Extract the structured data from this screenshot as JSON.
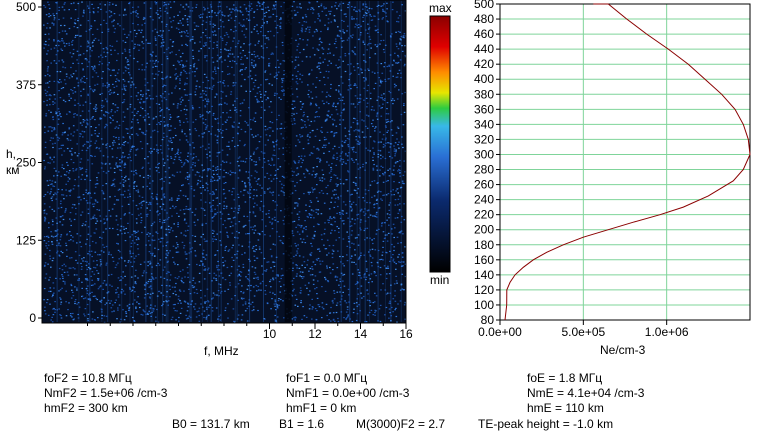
{
  "ionogram": {
    "y_axis_label_line1": "h,",
    "y_axis_label_line2": "км",
    "x_axis_label": "f, MHz",
    "colorbar_max_label": "max",
    "colorbar_min_label": "min",
    "y_ticks": [
      "0",
      "125",
      "250",
      "375",
      "500"
    ],
    "x_ticks": [
      "10",
      "12",
      "14",
      "16"
    ]
  },
  "profile": {
    "x_axis_label": "Ne/cm-3",
    "x_ticks": [
      "0.0e+00",
      "5.0e+05",
      "1.0e+06"
    ],
    "y_ticks": [
      "80",
      "100",
      "120",
      "140",
      "160",
      "180",
      "200",
      "220",
      "240",
      "260",
      "280",
      "300",
      "320",
      "340",
      "360",
      "380",
      "400",
      "420",
      "440",
      "460",
      "480",
      "500"
    ]
  },
  "parameters": {
    "col1": [
      "foF2 = 10.8 МГц",
      "NmF2 = 1.5e+06 /cm-3",
      "hmF2 = 300 km"
    ],
    "col2": [
      "foF1 = 0.0 МГц",
      "NmF1 = 0.0e+00 /cm-3",
      "hmF1 = 0 km"
    ],
    "col3": [
      "foE = 1.8 МГц",
      "NmE = 4.1e+04 /cm-3",
      "hmE = 110 km"
    ],
    "bottom": [
      "B0 = 131.7 km",
      "B1 = 1.6",
      "M(3000)F2 = 2.7",
      "TE-peak height = -1.0 km"
    ]
  },
  "colors": {
    "colormap": [
      "#000000",
      "#0b2a6e",
      "#2a6fd4",
      "#38b8e8",
      "#2ecc40",
      "#e6e600",
      "#ff8c00",
      "#e00000",
      "#8b0000"
    ],
    "grid": "#7fd49a",
    "profile_line": "#8b0000"
  },
  "chart_data": [
    {
      "type": "heatmap",
      "title": "",
      "xlabel": "f, MHz",
      "ylabel": "h, км",
      "xlim": [
        0,
        16
      ],
      "ylim": [
        0,
        500
      ],
      "colorbar": [
        "min",
        "max"
      ],
      "note": ""
    },
    {
      "type": "line",
      "title": "",
      "xlabel": "Ne/cm-3",
      "ylabel": "",
      "xlim": [
        0,
        1500000
      ],
      "ylim": [
        80,
        500
      ],
      "grid": true,
      "series": [
        {
          "x": [
            30000,
            40000,
            41000,
            60000,
            90000,
            140000,
            200000,
            280000,
            380000,
            500000,
            650000,
            800000,
            960000,
            1100000,
            1250000,
            1400000,
            1460000,
            1500000,
            1490000,
            1460000,
            1410000,
            1330000,
            1230000,
            1130000,
            1010000,
            880000,
            760000,
            650000,
            560000
          ],
          "y": [
            80,
            100,
            120,
            130,
            140,
            150,
            160,
            170,
            180,
            190,
            200,
            210,
            220,
            230,
            245,
            265,
            280,
            300,
            320,
            340,
            360,
            380,
            400,
            420,
            440,
            460,
            480,
            500,
            512
          ]
        }
      ]
    }
  ]
}
